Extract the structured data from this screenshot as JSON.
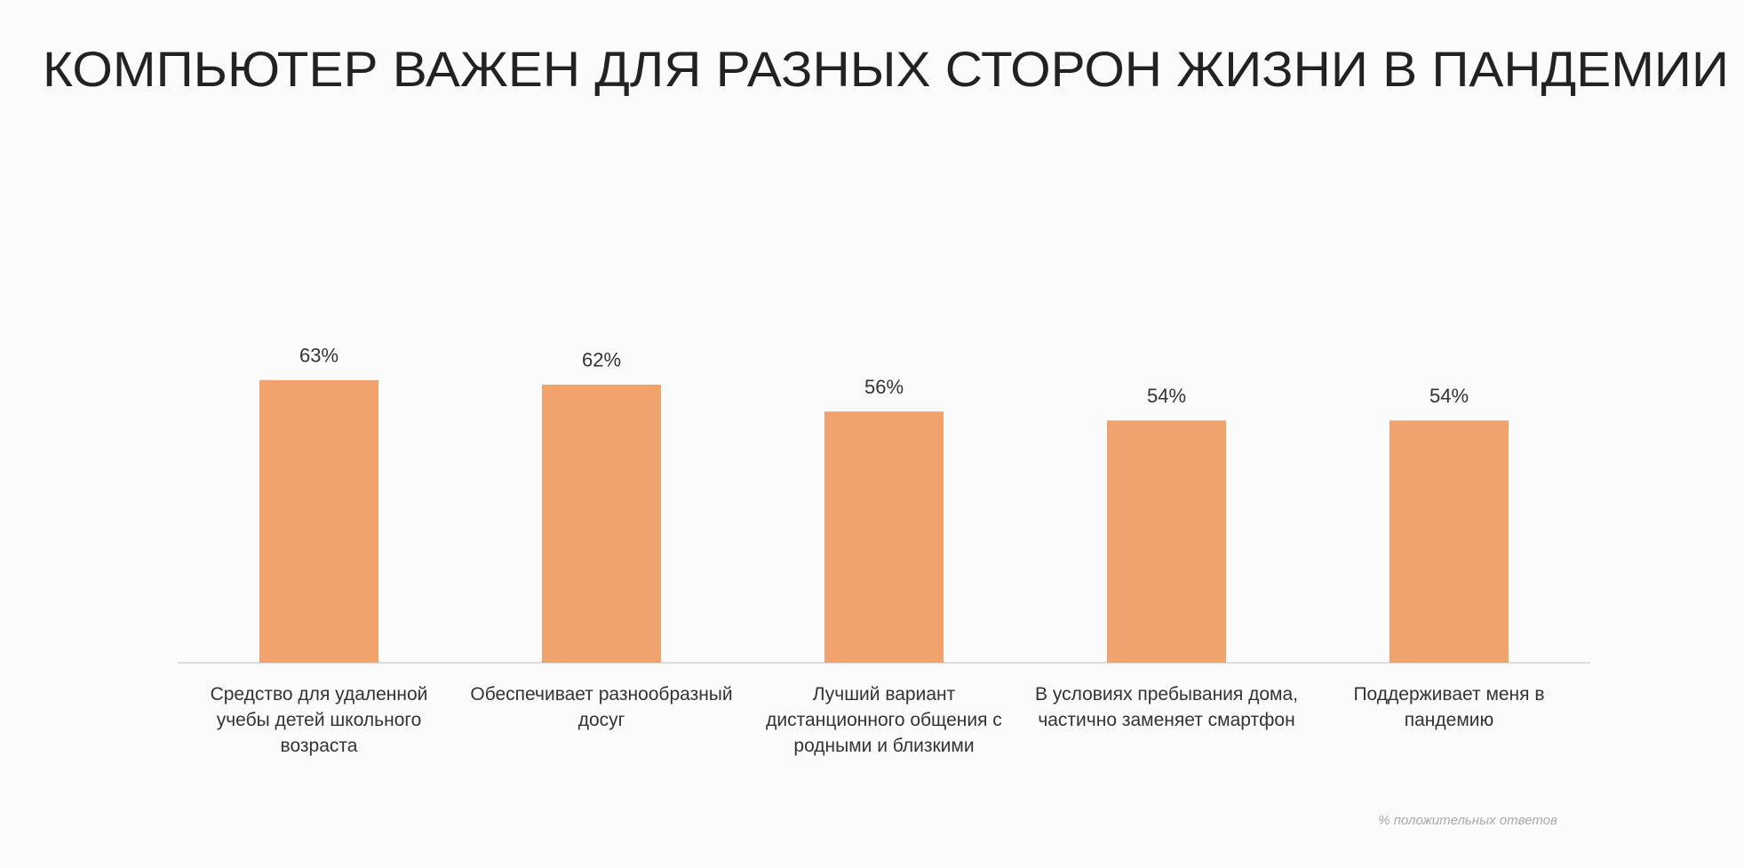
{
  "chart_data": {
    "type": "bar",
    "title": "КОМПЬЮТЕР ВАЖЕН ДЛЯ РАЗНЫХ СТОРОН ЖИЗНИ В ПАНДЕМИИ",
    "categories": [
      "Средство для удаленной учебы детей школьного возраста",
      "Обеспечивает разнообразный досуг",
      "Лучший вариант дистанционного общения с родными и близкими",
      "В условиях пребывания дома, частично заменяет смартфон",
      "Поддерживает меня в пандемию"
    ],
    "values": [
      63,
      62,
      56,
      54,
      54
    ],
    "value_labels": [
      "63%",
      "62%",
      "56%",
      "54%",
      "54%"
    ],
    "color": "#f0a36c",
    "note": "% положительных ответов"
  }
}
